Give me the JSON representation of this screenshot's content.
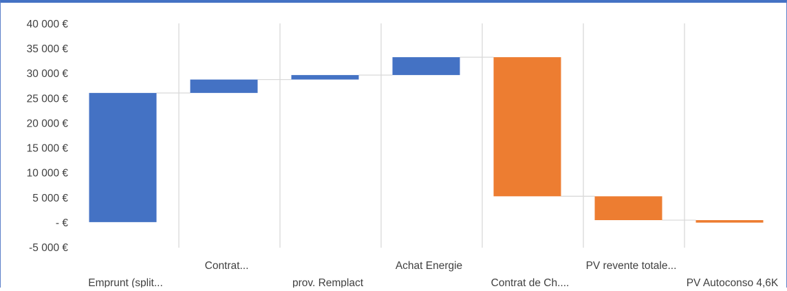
{
  "chart_data": {
    "type": "waterfall",
    "title": "",
    "xlabel": "",
    "ylabel": "",
    "ylim": [
      -5000,
      40000
    ],
    "ytick_step": 5000,
    "y_tick_labels": [
      "-5 000 €",
      "- €",
      "5 000 €",
      "10 000 €",
      "15 000 €",
      "20 000 €",
      "25 000 €",
      "30 000 €",
      "35 000 €",
      "40 000 €"
    ],
    "grid": "vertical",
    "legend": "none",
    "categories": [
      "Emprunt (split...",
      "Contrat...",
      "prov. Remplact",
      "Achat Energie",
      "Contrat de Ch....",
      "PV revente totale...",
      "PV Autoconso 4,6K"
    ],
    "values": [
      26000,
      2700,
      900,
      3600,
      -28000,
      -4800,
      -500
    ],
    "colors": {
      "increase": "#4472c4",
      "decrease": "#ed7d31",
      "gridline": "#d9d9d9",
      "connector": "#d9d9d9",
      "axis_text": "#404040"
    }
  }
}
